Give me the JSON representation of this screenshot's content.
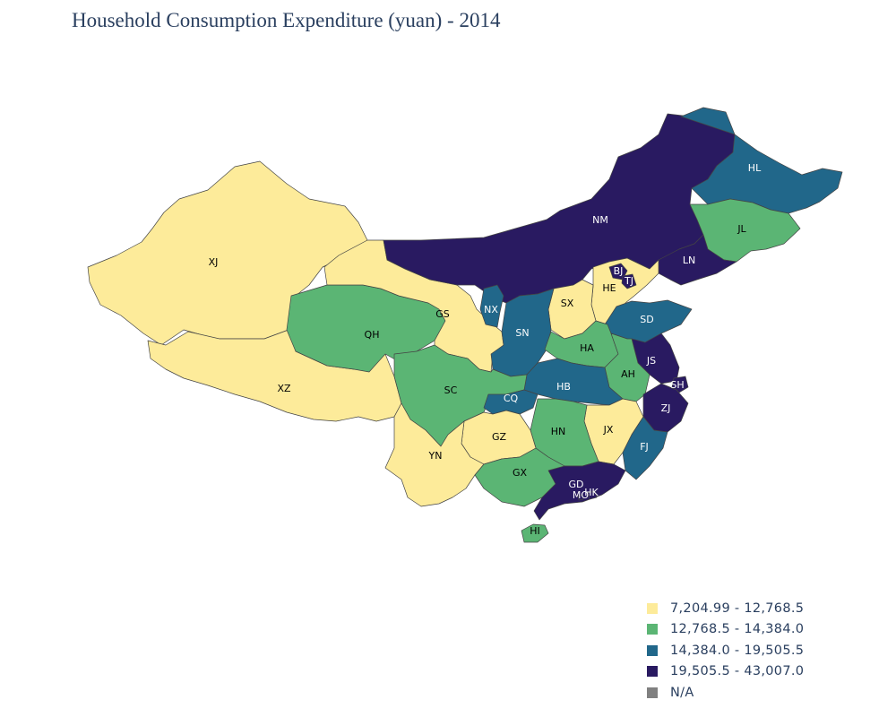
{
  "title": "Household Consumption Expenditure (yuan) - 2014",
  "colors": {
    "c1": "#fdeb9a",
    "c2": "#5bb574",
    "c3": "#21678a",
    "c4": "#291a61",
    "na": "#808080"
  },
  "legend": [
    {
      "label": "7,204.99 - 12,768.5",
      "color_key": "c1"
    },
    {
      "label": "12,768.5 - 14,384.0",
      "color_key": "c2"
    },
    {
      "label": "14,384.0 - 19,505.5",
      "color_key": "c3"
    },
    {
      "label": "19,505.5 - 43,007.0",
      "color_key": "c4"
    },
    {
      "label": "N/A",
      "color_key": "na"
    }
  ],
  "provinces": [
    {
      "code": "XJ",
      "bin": "c1"
    },
    {
      "code": "XZ",
      "bin": "c1"
    },
    {
      "code": "QH",
      "bin": "c2"
    },
    {
      "code": "GS",
      "bin": "c1"
    },
    {
      "code": "NM",
      "bin": "c4"
    },
    {
      "code": "HL",
      "bin": "c3"
    },
    {
      "code": "JL",
      "bin": "c2"
    },
    {
      "code": "LN",
      "bin": "c4"
    },
    {
      "code": "BJ",
      "bin": "c4"
    },
    {
      "code": "TJ",
      "bin": "c4"
    },
    {
      "code": "HE",
      "bin": "c1"
    },
    {
      "code": "SX",
      "bin": "c1"
    },
    {
      "code": "NX",
      "bin": "c3"
    },
    {
      "code": "SN",
      "bin": "c3"
    },
    {
      "code": "SD",
      "bin": "c3"
    },
    {
      "code": "HA",
      "bin": "c2"
    },
    {
      "code": "JS",
      "bin": "c4"
    },
    {
      "code": "AH",
      "bin": "c2"
    },
    {
      "code": "SH",
      "bin": "c4"
    },
    {
      "code": "HB",
      "bin": "c3"
    },
    {
      "code": "SC",
      "bin": "c2"
    },
    {
      "code": "CQ",
      "bin": "c3"
    },
    {
      "code": "ZJ",
      "bin": "c4"
    },
    {
      "code": "JX",
      "bin": "c1"
    },
    {
      "code": "HN",
      "bin": "c2"
    },
    {
      "code": "GZ",
      "bin": "c1"
    },
    {
      "code": "YN",
      "bin": "c1"
    },
    {
      "code": "FJ",
      "bin": "c3"
    },
    {
      "code": "GX",
      "bin": "c2"
    },
    {
      "code": "GD",
      "bin": "c4"
    },
    {
      "code": "HK",
      "bin": "c4"
    },
    {
      "code": "MO",
      "bin": "c4"
    },
    {
      "code": "HI",
      "bin": "c2"
    }
  ]
}
